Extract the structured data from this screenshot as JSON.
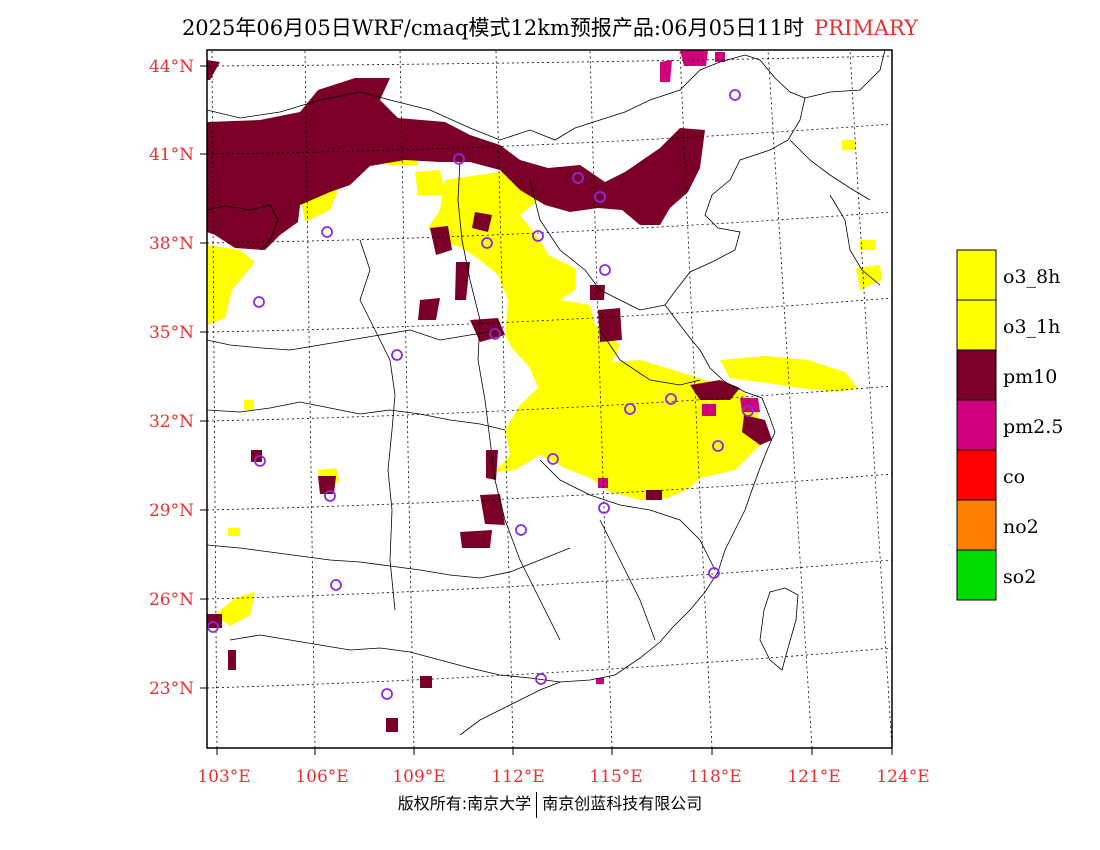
{
  "title": {
    "main": "2025年06月05日WRF/cmaq模式12km预报产品:06月05日11时",
    "primary": "PRIMARY"
  },
  "axes": {
    "lat_labels": [
      "44°N",
      "41°N",
      "38°N",
      "35°N",
      "32°N",
      "29°N",
      "26°N",
      "23°N"
    ],
    "lat_values": [
      44,
      41,
      38,
      35,
      32,
      29,
      26,
      23
    ],
    "lon_labels": [
      "103°E",
      "106°E",
      "109°E",
      "112°E",
      "115°E",
      "118°E",
      "121°E",
      "124°E"
    ],
    "lon_values": [
      103,
      106,
      109,
      112,
      115,
      118,
      121,
      124
    ],
    "label_color": "#e83030"
  },
  "legend": {
    "items": [
      {
        "label": "o3_8h",
        "color": "#ffff00"
      },
      {
        "label": "o3_1h",
        "color": "#ffff00"
      },
      {
        "label": "pm10",
        "color": "#7b0028"
      },
      {
        "label": "pm2.5",
        "color": "#d0007a"
      },
      {
        "label": "co",
        "color": "#ff0000"
      },
      {
        "label": "no2",
        "color": "#ff7f00"
      },
      {
        "label": "so2",
        "color": "#00dd00"
      }
    ]
  },
  "footer": {
    "left": "版权所有:南京大学",
    "right": "南京创蓝科技有限公司"
  },
  "colors": {
    "o3": "#ffff00",
    "pm10": "#7b0028",
    "pm25": "#d0007a",
    "station": "#8a2be2"
  }
}
